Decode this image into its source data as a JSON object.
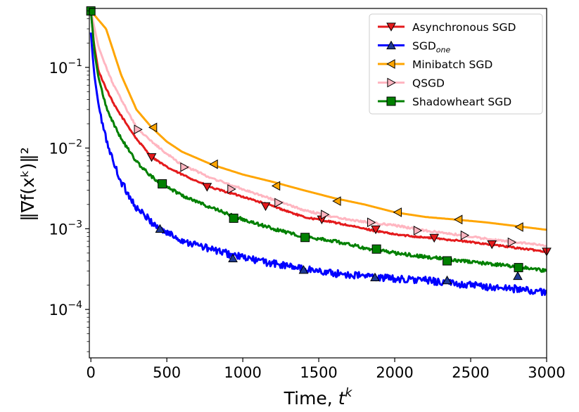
{
  "chart_data": {
    "type": "line",
    "title": "",
    "xlabel": "Time, ",
    "xlabel_sup": "k",
    "xlabel_var": "t",
    "ylabel": "‖∇f(xᵏ)‖²",
    "xlim": [
      -10,
      3000
    ],
    "ylim_log10": [
      -4.6,
      -0.27
    ],
    "y_scale": "log",
    "x_ticks": [
      0,
      500,
      1000,
      1500,
      2000,
      2500,
      3000
    ],
    "x_tick_labels": [
      "0",
      "500",
      "1000",
      "1500",
      "2000",
      "2500",
      "3000"
    ],
    "y_ticks_log10": [
      -4,
      -3,
      -2,
      -1
    ],
    "y_tick_labels": [
      {
        "base": "10",
        "exp": "−4"
      },
      {
        "base": "10",
        "exp": "−3"
      },
      {
        "base": "10",
        "exp": "−2"
      },
      {
        "base": "10",
        "exp": "−1"
      }
    ],
    "legend_position": "top-right",
    "series": [
      {
        "name": "Asynchronous SGD",
        "name_sub": "",
        "color": "#e41a1c",
        "marker": "triangle-down",
        "marker_face": "#e41a1c",
        "noise": 0.01,
        "x": [
          0,
          20,
          50,
          100,
          150,
          200,
          300,
          400,
          500,
          600,
          800,
          1000,
          1200,
          1400,
          1600,
          1800,
          2000,
          2200,
          2400,
          2600,
          2800,
          3000
        ],
        "y": [
          0.5,
          0.2,
          0.09,
          0.055,
          0.035,
          0.025,
          0.013,
          0.0078,
          0.0058,
          0.0047,
          0.0032,
          0.0025,
          0.0019,
          0.0014,
          0.0012,
          0.001,
          0.00085,
          0.00078,
          0.00072,
          0.00065,
          0.00058,
          0.00052
        ],
        "markers_x": [
          400,
          765,
          1150,
          1520,
          1875,
          2260,
          2640,
          3000
        ],
        "markers_y": [
          0.0077,
          0.0033,
          0.0019,
          0.0013,
          0.00098,
          0.00077,
          0.00064,
          0.00052
        ]
      },
      {
        "name": "SGD",
        "name_sub": "one",
        "color": "#0000ff",
        "marker": "triangle-up",
        "marker_face": "#1f3a93",
        "noise": 0.045,
        "x": [
          0,
          10,
          25,
          50,
          75,
          100,
          150,
          200,
          300,
          450,
          600,
          800,
          1000,
          1200,
          1400,
          1600,
          1800,
          2000,
          2200,
          2400,
          2600,
          2800,
          3000
        ],
        "y": [
          0.27,
          0.15,
          0.075,
          0.035,
          0.02,
          0.013,
          0.0065,
          0.0038,
          0.0018,
          0.001,
          0.00072,
          0.00055,
          0.00044,
          0.00037,
          0.00032,
          0.00028,
          0.00026,
          0.00024,
          0.00023,
          0.00021,
          0.00019,
          0.00018,
          0.00016
        ],
        "markers_x": [
          455,
          935,
          1400,
          1870,
          2345,
          2810
        ],
        "markers_y": [
          0.001,
          0.00043,
          0.00031,
          0.00025,
          0.00023,
          0.00026
        ]
      },
      {
        "name": "Minibatch SGD",
        "name_sub": "",
        "color": "#ffa500",
        "marker": "triangle-left",
        "marker_face": "#ffa500",
        "noise": 0,
        "x": [
          0,
          100,
          200,
          300,
          400,
          500,
          600,
          800,
          1000,
          1200,
          1400,
          1600,
          1800,
          2000,
          2200,
          2400,
          2600,
          2800,
          3000
        ],
        "y": [
          0.5,
          0.3,
          0.08,
          0.03,
          0.018,
          0.012,
          0.009,
          0.0062,
          0.0047,
          0.0038,
          0.003,
          0.0024,
          0.002,
          0.0016,
          0.0014,
          0.0013,
          0.0012,
          0.00108,
          0.00097
        ],
        "markers_x": [
          410,
          810,
          1220,
          1620,
          2020,
          2420,
          2820
        ],
        "markers_y": [
          0.018,
          0.0063,
          0.0034,
          0.0022,
          0.0016,
          0.0013,
          0.00105
        ]
      },
      {
        "name": "QSGD",
        "name_sub": "",
        "color": "#ffb6c1",
        "marker": "triangle-right",
        "marker_face": "#ffb6c1",
        "noise": 0.012,
        "x": [
          0,
          50,
          100,
          150,
          200,
          300,
          400,
          500,
          600,
          800,
          1000,
          1200,
          1400,
          1600,
          1800,
          2000,
          2200,
          2400,
          2600,
          2800,
          3000
        ],
        "y": [
          0.5,
          0.18,
          0.1,
          0.06,
          0.04,
          0.018,
          0.012,
          0.0085,
          0.0062,
          0.0042,
          0.0031,
          0.0023,
          0.0017,
          0.0014,
          0.00122,
          0.0011,
          0.00095,
          0.00085,
          0.00075,
          0.00068,
          0.00062
        ],
        "markers_x": [
          310,
          615,
          925,
          1235,
          1540,
          1845,
          2150,
          2460,
          2770
        ],
        "markers_y": [
          0.017,
          0.0058,
          0.0031,
          0.0021,
          0.0015,
          0.0012,
          0.00095,
          0.00083,
          0.00068
        ]
      },
      {
        "name": "Shadowheart SGD",
        "name_sub": "",
        "color": "#008000",
        "marker": "square",
        "marker_face": "#008000",
        "noise": 0.02,
        "x": [
          0,
          25,
          50,
          100,
          150,
          200,
          300,
          400,
          470,
          600,
          800,
          1000,
          1200,
          1400,
          1600,
          1800,
          2000,
          2200,
          2400,
          2600,
          2800,
          3000
        ],
        "y": [
          0.5,
          0.15,
          0.075,
          0.033,
          0.02,
          0.013,
          0.0068,
          0.0044,
          0.0036,
          0.0026,
          0.0018,
          0.0013,
          0.001,
          0.0008,
          0.0007,
          0.00058,
          0.0005,
          0.00045,
          0.00041,
          0.00037,
          0.00034,
          0.0003
        ],
        "markers_x": [
          0,
          470,
          940,
          1410,
          1880,
          2345,
          2815
        ],
        "markers_y": [
          0.5,
          0.0036,
          0.00135,
          0.00078,
          0.00056,
          0.0004,
          0.00033
        ]
      }
    ]
  }
}
